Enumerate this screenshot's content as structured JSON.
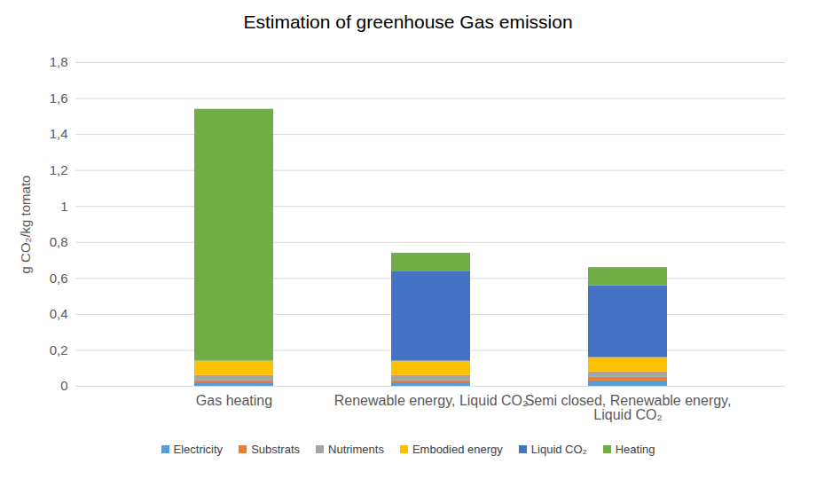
{
  "chart_data": {
    "type": "bar",
    "title": "Estimation of greenhouse Gas emission",
    "y_label": "g CO₂/kg tomato",
    "categories": [
      "Gas heating",
      "Renewable energy, Liquid CO₂",
      "Semi closed, Renewable energy, Liquid CO₂"
    ],
    "series": [
      {
        "name": "Electricity",
        "color": "#5b9bd5",
        "values": [
          0.02,
          0.02,
          0.03
        ]
      },
      {
        "name": "Substrats",
        "color": "#ed7d31",
        "values": [
          0.01,
          0.01,
          0.02
        ]
      },
      {
        "name": "Nutriments",
        "color": "#a5a5a5",
        "values": [
          0.03,
          0.03,
          0.03
        ]
      },
      {
        "name": "Embodied energy",
        "color": "#ffc000",
        "values": [
          0.08,
          0.08,
          0.08
        ]
      },
      {
        "name": "Liquid CO₂",
        "color": "#4472c4",
        "values": [
          0,
          0.5,
          0.4
        ]
      },
      {
        "name": "Heating",
        "color": "#70ad47",
        "values": [
          1.4,
          0.1,
          0.1
        ]
      }
    ],
    "stacked": true,
    "ylim": [
      0,
      1.8
    ],
    "yticks": [
      0,
      {
        "value": 0.2,
        "label": "0,2"
      },
      {
        "value": 0.4,
        "label": "0,4"
      },
      {
        "value": 0.6,
        "label": "0,6"
      },
      {
        "value": 0.8,
        "label": "0,8"
      },
      {
        "value": 1,
        "label": "1"
      },
      {
        "value": 1.2,
        "label": "1,2"
      },
      {
        "value": 1.4,
        "label": "1,4"
      },
      {
        "value": 1.6,
        "label": "1,6"
      },
      {
        "value": 1.8,
        "label": "1,8"
      }
    ],
    "grid": true,
    "legend": "bottom"
  }
}
